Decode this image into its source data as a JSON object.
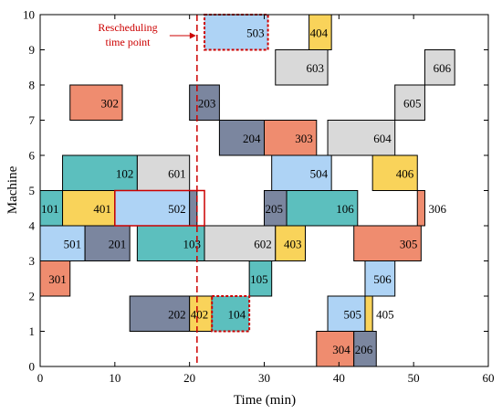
{
  "chart_data": {
    "type": "gantt",
    "xlabel": "Time (min)",
    "ylabel": "Machine",
    "xlim": [
      0,
      60
    ],
    "ylim": [
      0,
      10
    ],
    "xticks": [
      0,
      10,
      20,
      30,
      40,
      50,
      60
    ],
    "yticks": [
      0,
      1,
      2,
      3,
      4,
      5,
      6,
      7,
      8,
      9,
      10
    ],
    "grid": false,
    "colors": {
      "gray": "#d9d9d9",
      "light_blue": "#aed3f5",
      "yellow": "#f9d35a",
      "salmon": "#ef8c6f",
      "teal": "#5cbfbe",
      "slate": "#7b869f",
      "red_dash": "#cc0000"
    },
    "rescheduling": {
      "time": 21,
      "label_line1": "Rescheduling",
      "label_line2": "time point"
    },
    "tasks": [
      {
        "label": "503",
        "start": 22,
        "end": 30.5,
        "y0": 9,
        "y1": 10,
        "color": "light_blue",
        "dashed": true
      },
      {
        "label": "404",
        "start": 36,
        "end": 39,
        "y0": 9,
        "y1": 10,
        "color": "yellow"
      },
      {
        "label": "603",
        "start": 31.5,
        "end": 38.5,
        "y0": 8,
        "y1": 9,
        "color": "gray"
      },
      {
        "label": "606",
        "start": 51.5,
        "end": 55.5,
        "y0": 8,
        "y1": 9,
        "color": "gray"
      },
      {
        "label": "302",
        "start": 4,
        "end": 11,
        "y0": 7,
        "y1": 8,
        "color": "salmon"
      },
      {
        "label": "203",
        "start": 20,
        "end": 24,
        "y0": 7,
        "y1": 8,
        "color": "slate"
      },
      {
        "label": "605",
        "start": 47.5,
        "end": 51.5,
        "y0": 7,
        "y1": 8,
        "color": "gray"
      },
      {
        "label": "204",
        "start": 24,
        "end": 30,
        "y0": 6,
        "y1": 7,
        "color": "slate"
      },
      {
        "label": "303",
        "start": 30,
        "end": 37,
        "y0": 6,
        "y1": 7,
        "color": "salmon"
      },
      {
        "label": "604",
        "start": 38.5,
        "end": 47.5,
        "y0": 6,
        "y1": 7,
        "color": "gray"
      },
      {
        "label": "102",
        "start": 3,
        "end": 13,
        "y0": 5,
        "y1": 6,
        "color": "teal"
      },
      {
        "label": "601",
        "start": 13,
        "end": 20,
        "y0": 5,
        "y1": 6,
        "color": "gray"
      },
      {
        "label": "504",
        "start": 31,
        "end": 39,
        "y0": 5,
        "y1": 6,
        "color": "light_blue"
      },
      {
        "label": "406",
        "start": 44.5,
        "end": 50.5,
        "y0": 5,
        "y1": 6,
        "color": "yellow"
      },
      {
        "label": "101",
        "start": 0,
        "end": 3,
        "y0": 4,
        "y1": 5,
        "color": "teal"
      },
      {
        "label": "401",
        "start": 3,
        "end": 10,
        "y0": 4,
        "y1": 5,
        "color": "yellow"
      },
      {
        "label": "502",
        "start": 10,
        "end": 20,
        "y0": 4,
        "y1": 5,
        "color": "light_blue"
      },
      {
        "label": "",
        "start": 20,
        "end": 21,
        "y0": 4,
        "y1": 5,
        "color": "slate"
      },
      {
        "label": "205",
        "start": 30,
        "end": 33,
        "y0": 4,
        "y1": 5,
        "color": "slate"
      },
      {
        "label": "106",
        "start": 33,
        "end": 42.5,
        "y0": 4,
        "y1": 5,
        "color": "teal"
      },
      {
        "label": "306",
        "start": 50.5,
        "end": 51.5,
        "y0": 4,
        "y1": 5,
        "color": "salmon",
        "label_outside": true
      },
      {
        "label": "501",
        "start": 0,
        "end": 6,
        "y0": 3,
        "y1": 4,
        "color": "light_blue"
      },
      {
        "label": "201",
        "start": 6,
        "end": 12,
        "y0": 3,
        "y1": 4,
        "color": "slate"
      },
      {
        "label": "103",
        "start": 13,
        "end": 22,
        "y0": 3,
        "y1": 4,
        "color": "teal"
      },
      {
        "label": "602",
        "start": 22,
        "end": 31.5,
        "y0": 3,
        "y1": 4,
        "color": "gray"
      },
      {
        "label": "403",
        "start": 31.5,
        "end": 35.5,
        "y0": 3,
        "y1": 4,
        "color": "yellow"
      },
      {
        "label": "305",
        "start": 42,
        "end": 51,
        "y0": 3,
        "y1": 4,
        "color": "salmon"
      },
      {
        "label": "301",
        "start": 0,
        "end": 4,
        "y0": 2,
        "y1": 3,
        "color": "salmon"
      },
      {
        "label": "105",
        "start": 28,
        "end": 31,
        "y0": 2,
        "y1": 3,
        "color": "teal"
      },
      {
        "label": "506",
        "start": 43.5,
        "end": 47.5,
        "y0": 2,
        "y1": 3,
        "color": "light_blue"
      },
      {
        "label": "202",
        "start": 12,
        "end": 20,
        "y0": 1,
        "y1": 2,
        "color": "slate"
      },
      {
        "label": "402",
        "start": 20,
        "end": 23,
        "y0": 1,
        "y1": 2,
        "color": "yellow"
      },
      {
        "label": "104",
        "start": 23,
        "end": 28,
        "y0": 1,
        "y1": 2,
        "color": "teal",
        "dashed": true
      },
      {
        "label": "505",
        "start": 38.5,
        "end": 43.5,
        "y0": 1,
        "y1": 2,
        "color": "light_blue"
      },
      {
        "label": "405",
        "start": 43.5,
        "end": 44.5,
        "y0": 1,
        "y1": 2,
        "color": "yellow",
        "label_outside": true
      },
      {
        "label": "304",
        "start": 37,
        "end": 42,
        "y0": 0,
        "y1": 1,
        "color": "salmon"
      },
      {
        "label": "206",
        "start": 42,
        "end": 45,
        "y0": 0,
        "y1": 1,
        "color": "slate"
      }
    ],
    "highlight_boxes": [
      {
        "start": 10,
        "end": 22,
        "y0": 4,
        "y1": 5
      }
    ]
  }
}
